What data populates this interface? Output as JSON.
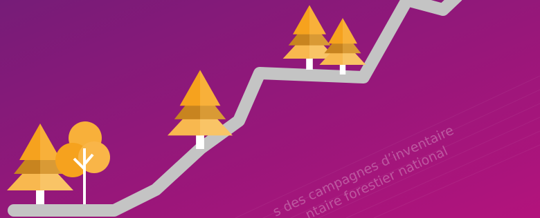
{
  "texts": [
    "s des campagnes d’inventaire",
    "ntaire forestier national"
  ]
}
